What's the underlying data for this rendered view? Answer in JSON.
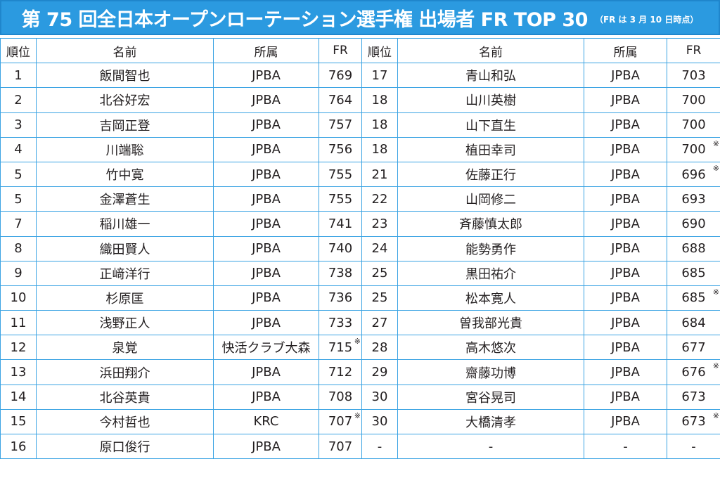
{
  "header": {
    "title": "第 75 回全日本オープンローテーション選手権 出場者 FR TOP 30",
    "note": "（FR は 3 月 10 日時点）"
  },
  "columns": {
    "rank": "順位",
    "name": "名前",
    "affiliation": "所属",
    "fr": "FR"
  },
  "left_rows": [
    {
      "rank": "1",
      "name": "飯間智也",
      "affiliation": "JPBA",
      "fr": "769",
      "mark": ""
    },
    {
      "rank": "2",
      "name": "北谷好宏",
      "affiliation": "JPBA",
      "fr": "764",
      "mark": ""
    },
    {
      "rank": "3",
      "name": "吉岡正登",
      "affiliation": "JPBA",
      "fr": "757",
      "mark": ""
    },
    {
      "rank": "4",
      "name": "川端聡",
      "affiliation": "JPBA",
      "fr": "756",
      "mark": ""
    },
    {
      "rank": "5",
      "name": "竹中寛",
      "affiliation": "JPBA",
      "fr": "755",
      "mark": ""
    },
    {
      "rank": "5",
      "name": "金澤蒼生",
      "affiliation": "JPBA",
      "fr": "755",
      "mark": ""
    },
    {
      "rank": "7",
      "name": "稲川雄一",
      "affiliation": "JPBA",
      "fr": "741",
      "mark": ""
    },
    {
      "rank": "8",
      "name": "織田賢人",
      "affiliation": "JPBA",
      "fr": "740",
      "mark": ""
    },
    {
      "rank": "9",
      "name": "正﨑洋行",
      "affiliation": "JPBA",
      "fr": "738",
      "mark": ""
    },
    {
      "rank": "10",
      "name": "杉原匡",
      "affiliation": "JPBA",
      "fr": "736",
      "mark": ""
    },
    {
      "rank": "11",
      "name": "浅野正人",
      "affiliation": "JPBA",
      "fr": "733",
      "mark": ""
    },
    {
      "rank": "12",
      "name": "泉覚",
      "affiliation": "快活クラブ大森",
      "fr": "715",
      "mark": "※"
    },
    {
      "rank": "13",
      "name": "浜田翔介",
      "affiliation": "JPBA",
      "fr": "712",
      "mark": ""
    },
    {
      "rank": "14",
      "name": "北谷英貴",
      "affiliation": "JPBA",
      "fr": "708",
      "mark": ""
    },
    {
      "rank": "15",
      "name": "今村哲也",
      "affiliation": "KRC",
      "fr": "707",
      "mark": "※"
    },
    {
      "rank": "16",
      "name": "原口俊行",
      "affiliation": "JPBA",
      "fr": "707",
      "mark": ""
    }
  ],
  "right_rows": [
    {
      "rank": "17",
      "name": "青山和弘",
      "affiliation": "JPBA",
      "fr": "703",
      "mark": ""
    },
    {
      "rank": "18",
      "name": "山川英樹",
      "affiliation": "JPBA",
      "fr": "700",
      "mark": ""
    },
    {
      "rank": "18",
      "name": "山下直生",
      "affiliation": "JPBA",
      "fr": "700",
      "mark": ""
    },
    {
      "rank": "18",
      "name": "植田幸司",
      "affiliation": "JPBA",
      "fr": "700",
      "mark": "※"
    },
    {
      "rank": "21",
      "name": "佐藤正行",
      "affiliation": "JPBA",
      "fr": "696",
      "mark": "※"
    },
    {
      "rank": "22",
      "name": "山岡修二",
      "affiliation": "JPBA",
      "fr": "693",
      "mark": ""
    },
    {
      "rank": "23",
      "name": "斉藤慎太郎",
      "affiliation": "JPBA",
      "fr": "690",
      "mark": ""
    },
    {
      "rank": "24",
      "name": "能勢勇作",
      "affiliation": "JPBA",
      "fr": "688",
      "mark": ""
    },
    {
      "rank": "25",
      "name": "黒田祐介",
      "affiliation": "JPBA",
      "fr": "685",
      "mark": ""
    },
    {
      "rank": "25",
      "name": "松本寛人",
      "affiliation": "JPBA",
      "fr": "685",
      "mark": "※"
    },
    {
      "rank": "27",
      "name": "曽我部光貴",
      "affiliation": "JPBA",
      "fr": "684",
      "mark": ""
    },
    {
      "rank": "28",
      "name": "高木悠次",
      "affiliation": "JPBA",
      "fr": "677",
      "mark": ""
    },
    {
      "rank": "29",
      "name": "齋藤功博",
      "affiliation": "JPBA",
      "fr": "676",
      "mark": "※"
    },
    {
      "rank": "30",
      "name": "宮谷晃司",
      "affiliation": "JPBA",
      "fr": "673",
      "mark": ""
    },
    {
      "rank": "30",
      "name": "大橋清孝",
      "affiliation": "JPBA",
      "fr": "673",
      "mark": "※"
    },
    {
      "rank": "-",
      "name": "-",
      "affiliation": "-",
      "fr": "-",
      "mark": ""
    }
  ],
  "colors": {
    "banner": "#2b9ae0",
    "grid_line": "#3aa3e3",
    "text": "#231f20"
  }
}
